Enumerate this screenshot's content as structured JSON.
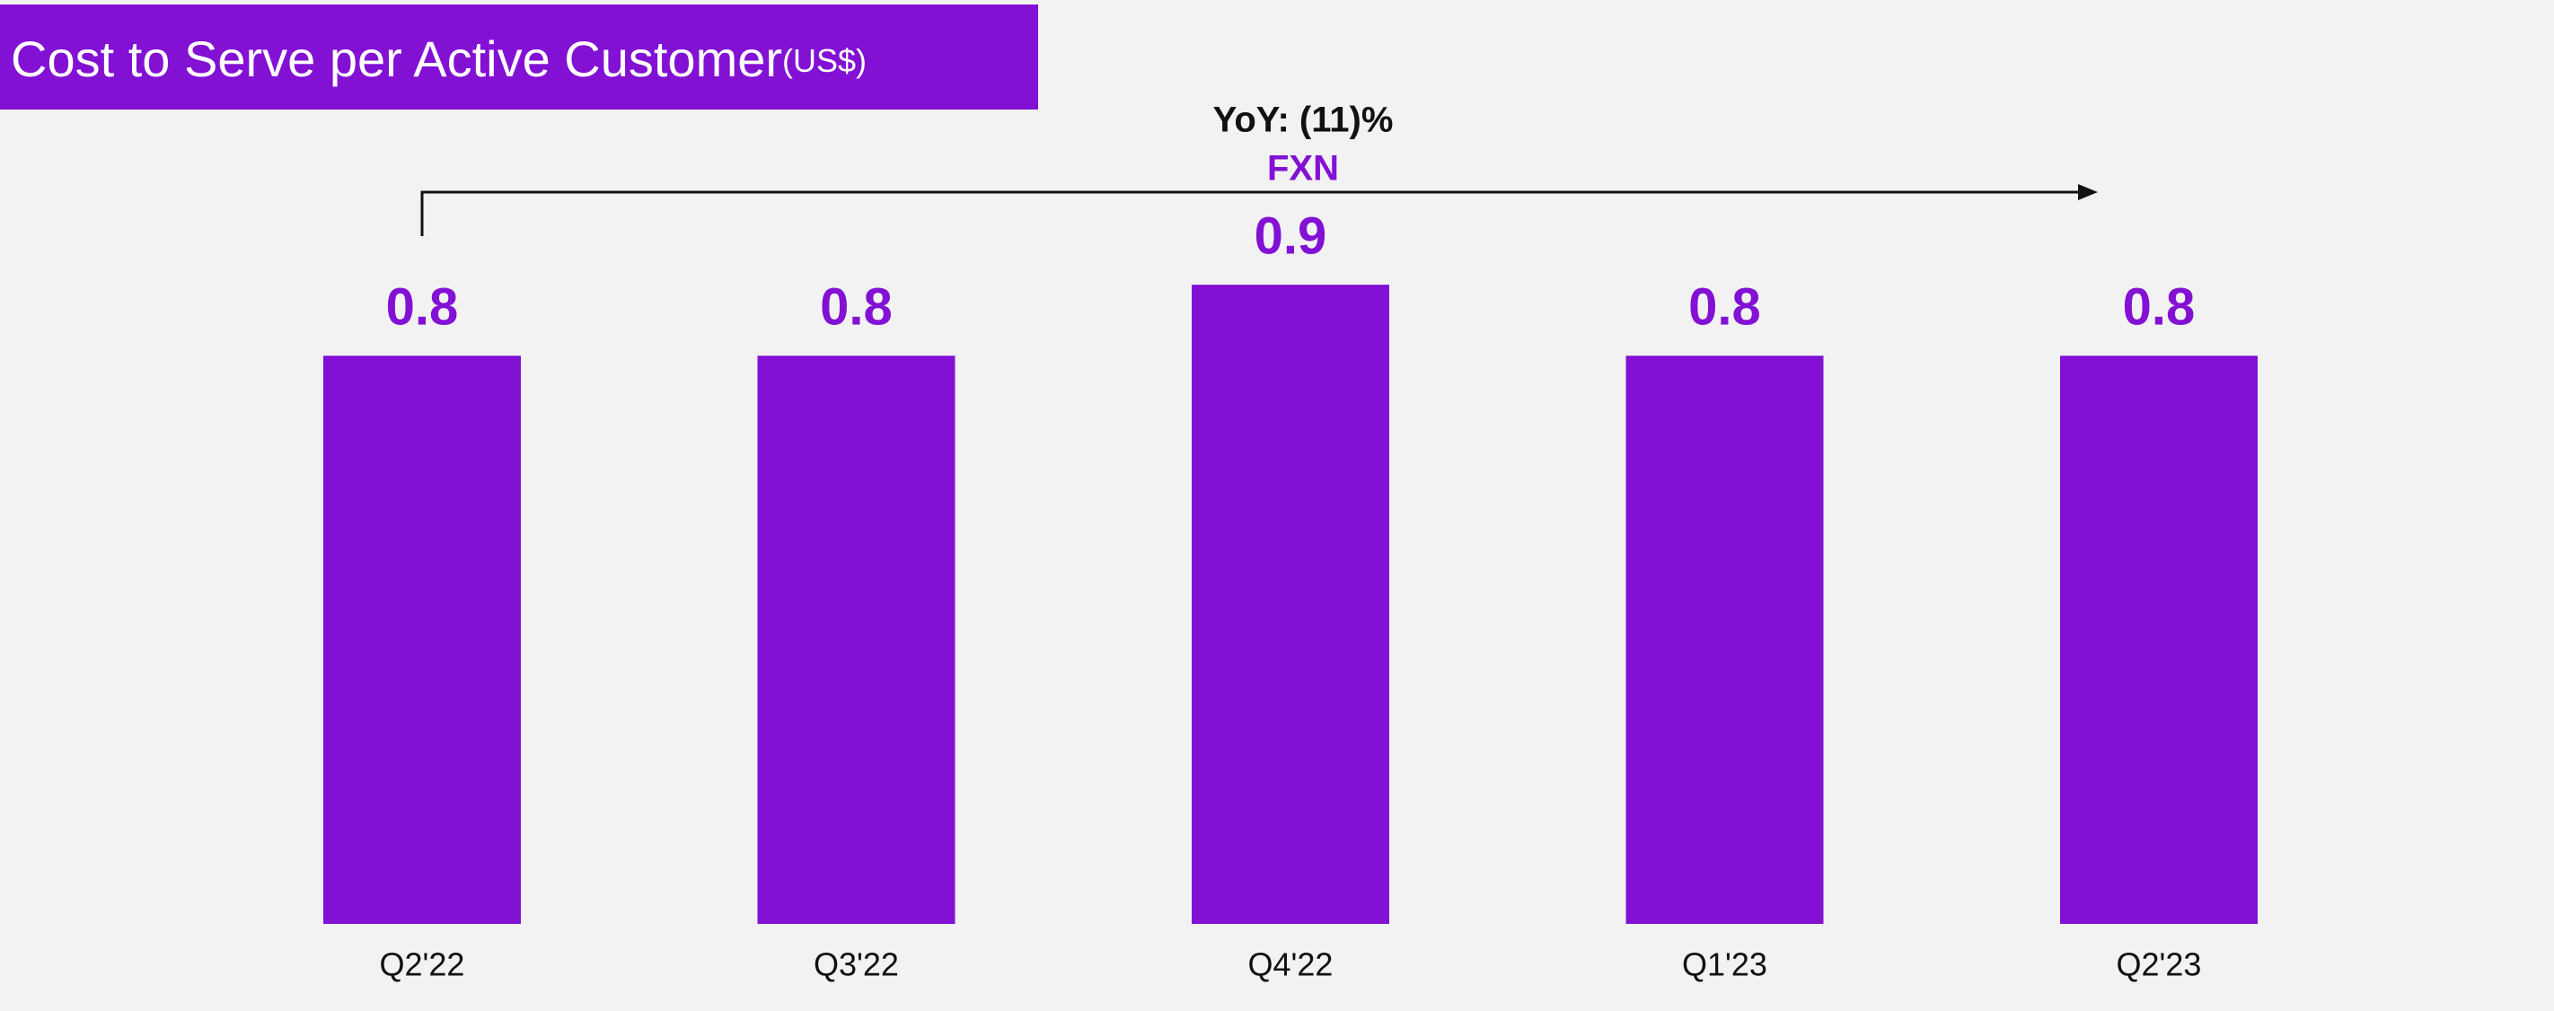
{
  "chart_data": {
    "type": "bar",
    "title": "Cost to Serve per Active Customer",
    "unit": "(US$)",
    "annotation": "YoY: (11)%",
    "annotation_sub": "FXN",
    "categories": [
      "Q2'22",
      "Q3'22",
      "Q4'22",
      "Q1'23",
      "Q2'23"
    ],
    "values": [
      0.8,
      0.8,
      0.9,
      0.8,
      0.8
    ],
    "color": "#8211d4"
  }
}
